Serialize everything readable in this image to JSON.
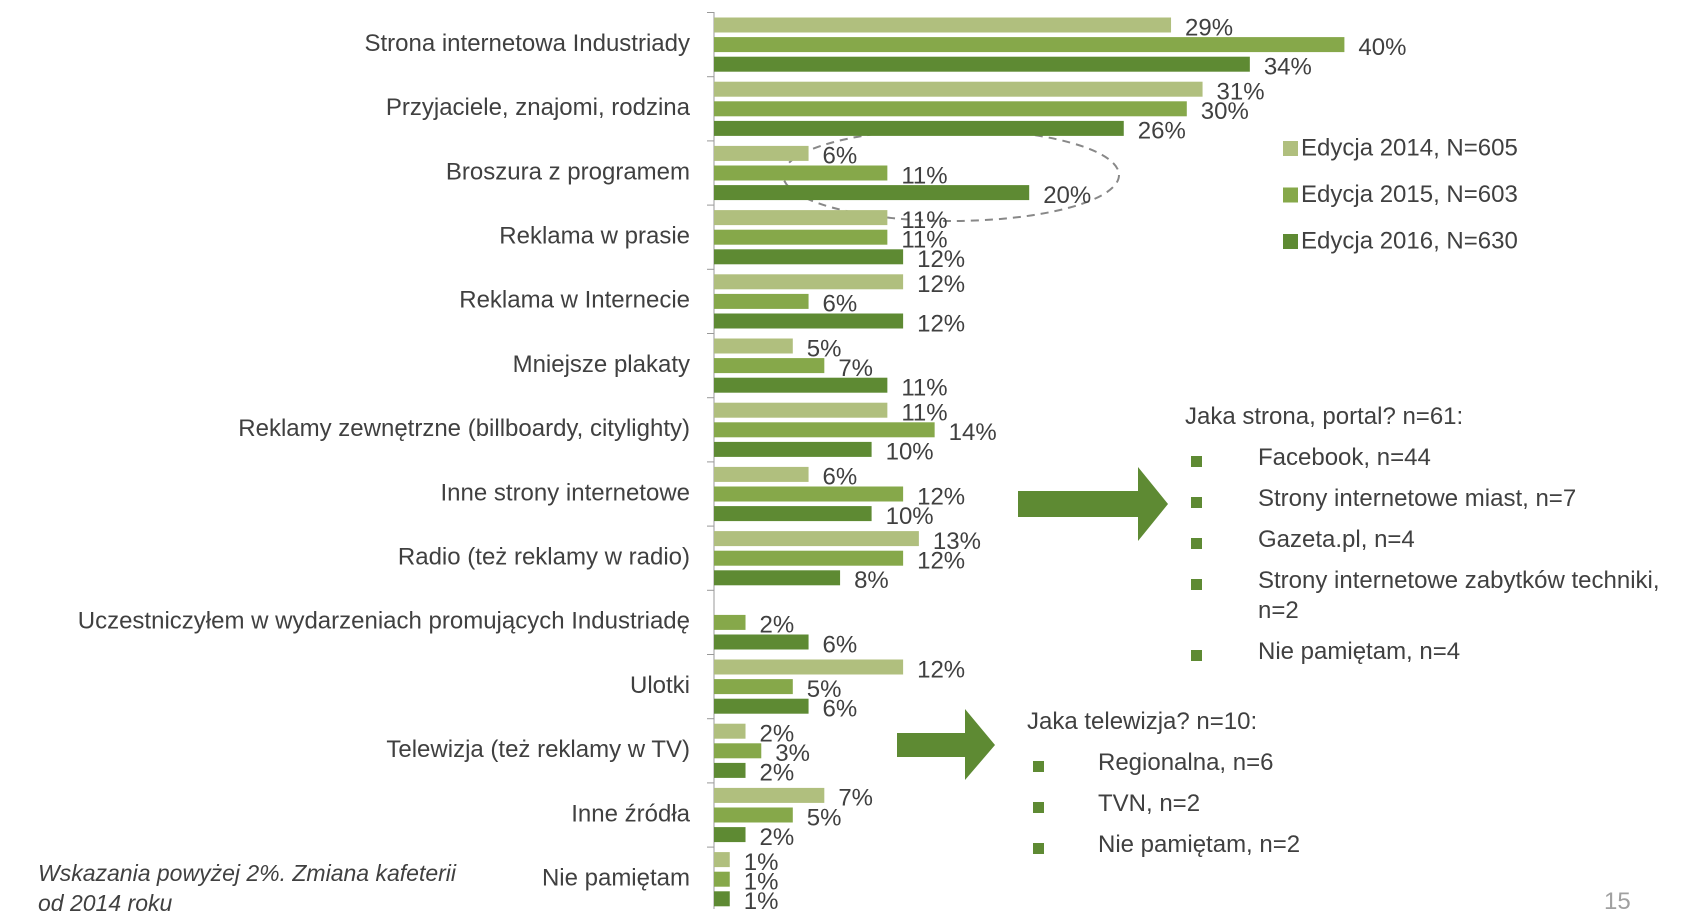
{
  "chart_data": {
    "type": "bar",
    "orientation": "horizontal",
    "categories": [
      "Strona internetowa Industriady",
      "Przyjaciele, znajomi, rodzina",
      "Broszura z programem",
      "Reklama w prasie",
      "Reklama w Internecie",
      "Mniejsze plakaty",
      "Reklamy zewnętrzne (billboardy, citylighty)",
      "Inne strony internetowe",
      "Radio (też reklamy w radio)",
      "Uczestniczyłem w wydarzeniach promujących Industriadę",
      "Ulotki",
      "Telewizja (też reklamy w TV)",
      "Inne źródła",
      "Nie pamiętam"
    ],
    "series": [
      {
        "name": "Edycja 2014, N=605",
        "color": "#b0bf7e",
        "values": [
          29,
          31,
          6,
          11,
          12,
          5,
          11,
          6,
          13,
          null,
          12,
          2,
          7,
          1
        ],
        "value_labels": [
          "29%",
          "31%",
          "6%",
          "11%",
          "12%",
          "5%",
          "11%",
          "6%",
          "13%",
          null,
          "12%",
          "2%",
          "7%",
          "1%"
        ]
      },
      {
        "name": "Edycja 2015, N=603",
        "color": "#86a84a",
        "values": [
          40,
          30,
          11,
          11,
          6,
          7,
          14,
          12,
          12,
          2,
          5,
          3,
          5,
          1
        ],
        "value_labels": [
          "40%",
          "30%",
          "11%",
          "11%",
          "6%",
          "7%",
          "14%",
          "12%",
          "12%",
          "2%",
          "5%",
          "3%",
          "5%",
          "1%"
        ]
      },
      {
        "name": "Edycja 2016, N=630",
        "color": "#5e8a33",
        "values": [
          34,
          26,
          20,
          12,
          12,
          11,
          10,
          10,
          8,
          6,
          6,
          2,
          2,
          1
        ],
        "value_labels": [
          "34%",
          "26%",
          "20%",
          "12%",
          "12%",
          "11%",
          "10%",
          "10%",
          "8%",
          "6%",
          "6%",
          "2%",
          "2%",
          "1%"
        ]
      }
    ],
    "legend": "right",
    "annotations": [
      {
        "title": "Jaka strona, portal? n=61:",
        "items": [
          "Facebook, n=44",
          "Strony internetowe miast, n=7",
          "Gazeta.pl, n=4",
          "Strony internetowe zabytków techniki, n=2",
          "Nie pamiętam, n=4"
        ]
      },
      {
        "title": "Jaka telewizja? n=10:",
        "items": [
          "Regionalna, n=6",
          "TVN, n=2",
          "Nie pamiętam, n=2"
        ]
      }
    ],
    "note": "Wskazania powyżej 2%. Zmiana kafeterii od 2014 roku",
    "page_number": "15"
  }
}
